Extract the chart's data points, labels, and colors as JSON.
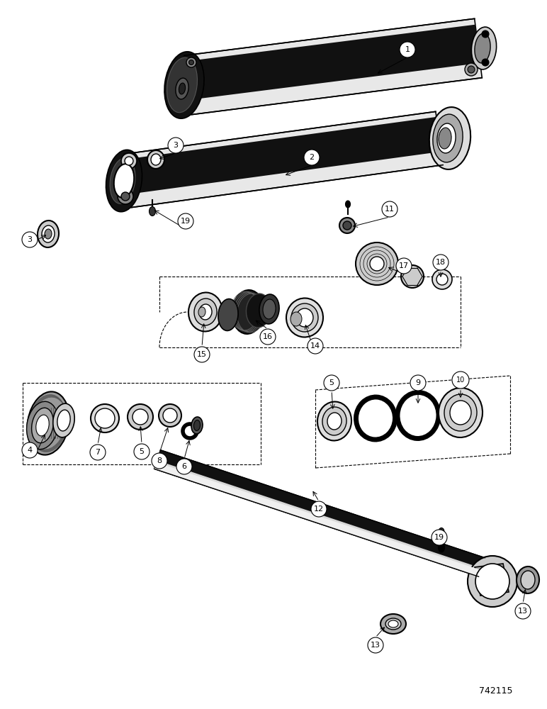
{
  "figure_width": 7.72,
  "figure_height": 10.0,
  "dpi": 100,
  "background_color": "#ffffff",
  "catalog_number": "742115",
  "annotation_color": "#000000",
  "font_size_label": 8,
  "font_size_catalog": 9
}
